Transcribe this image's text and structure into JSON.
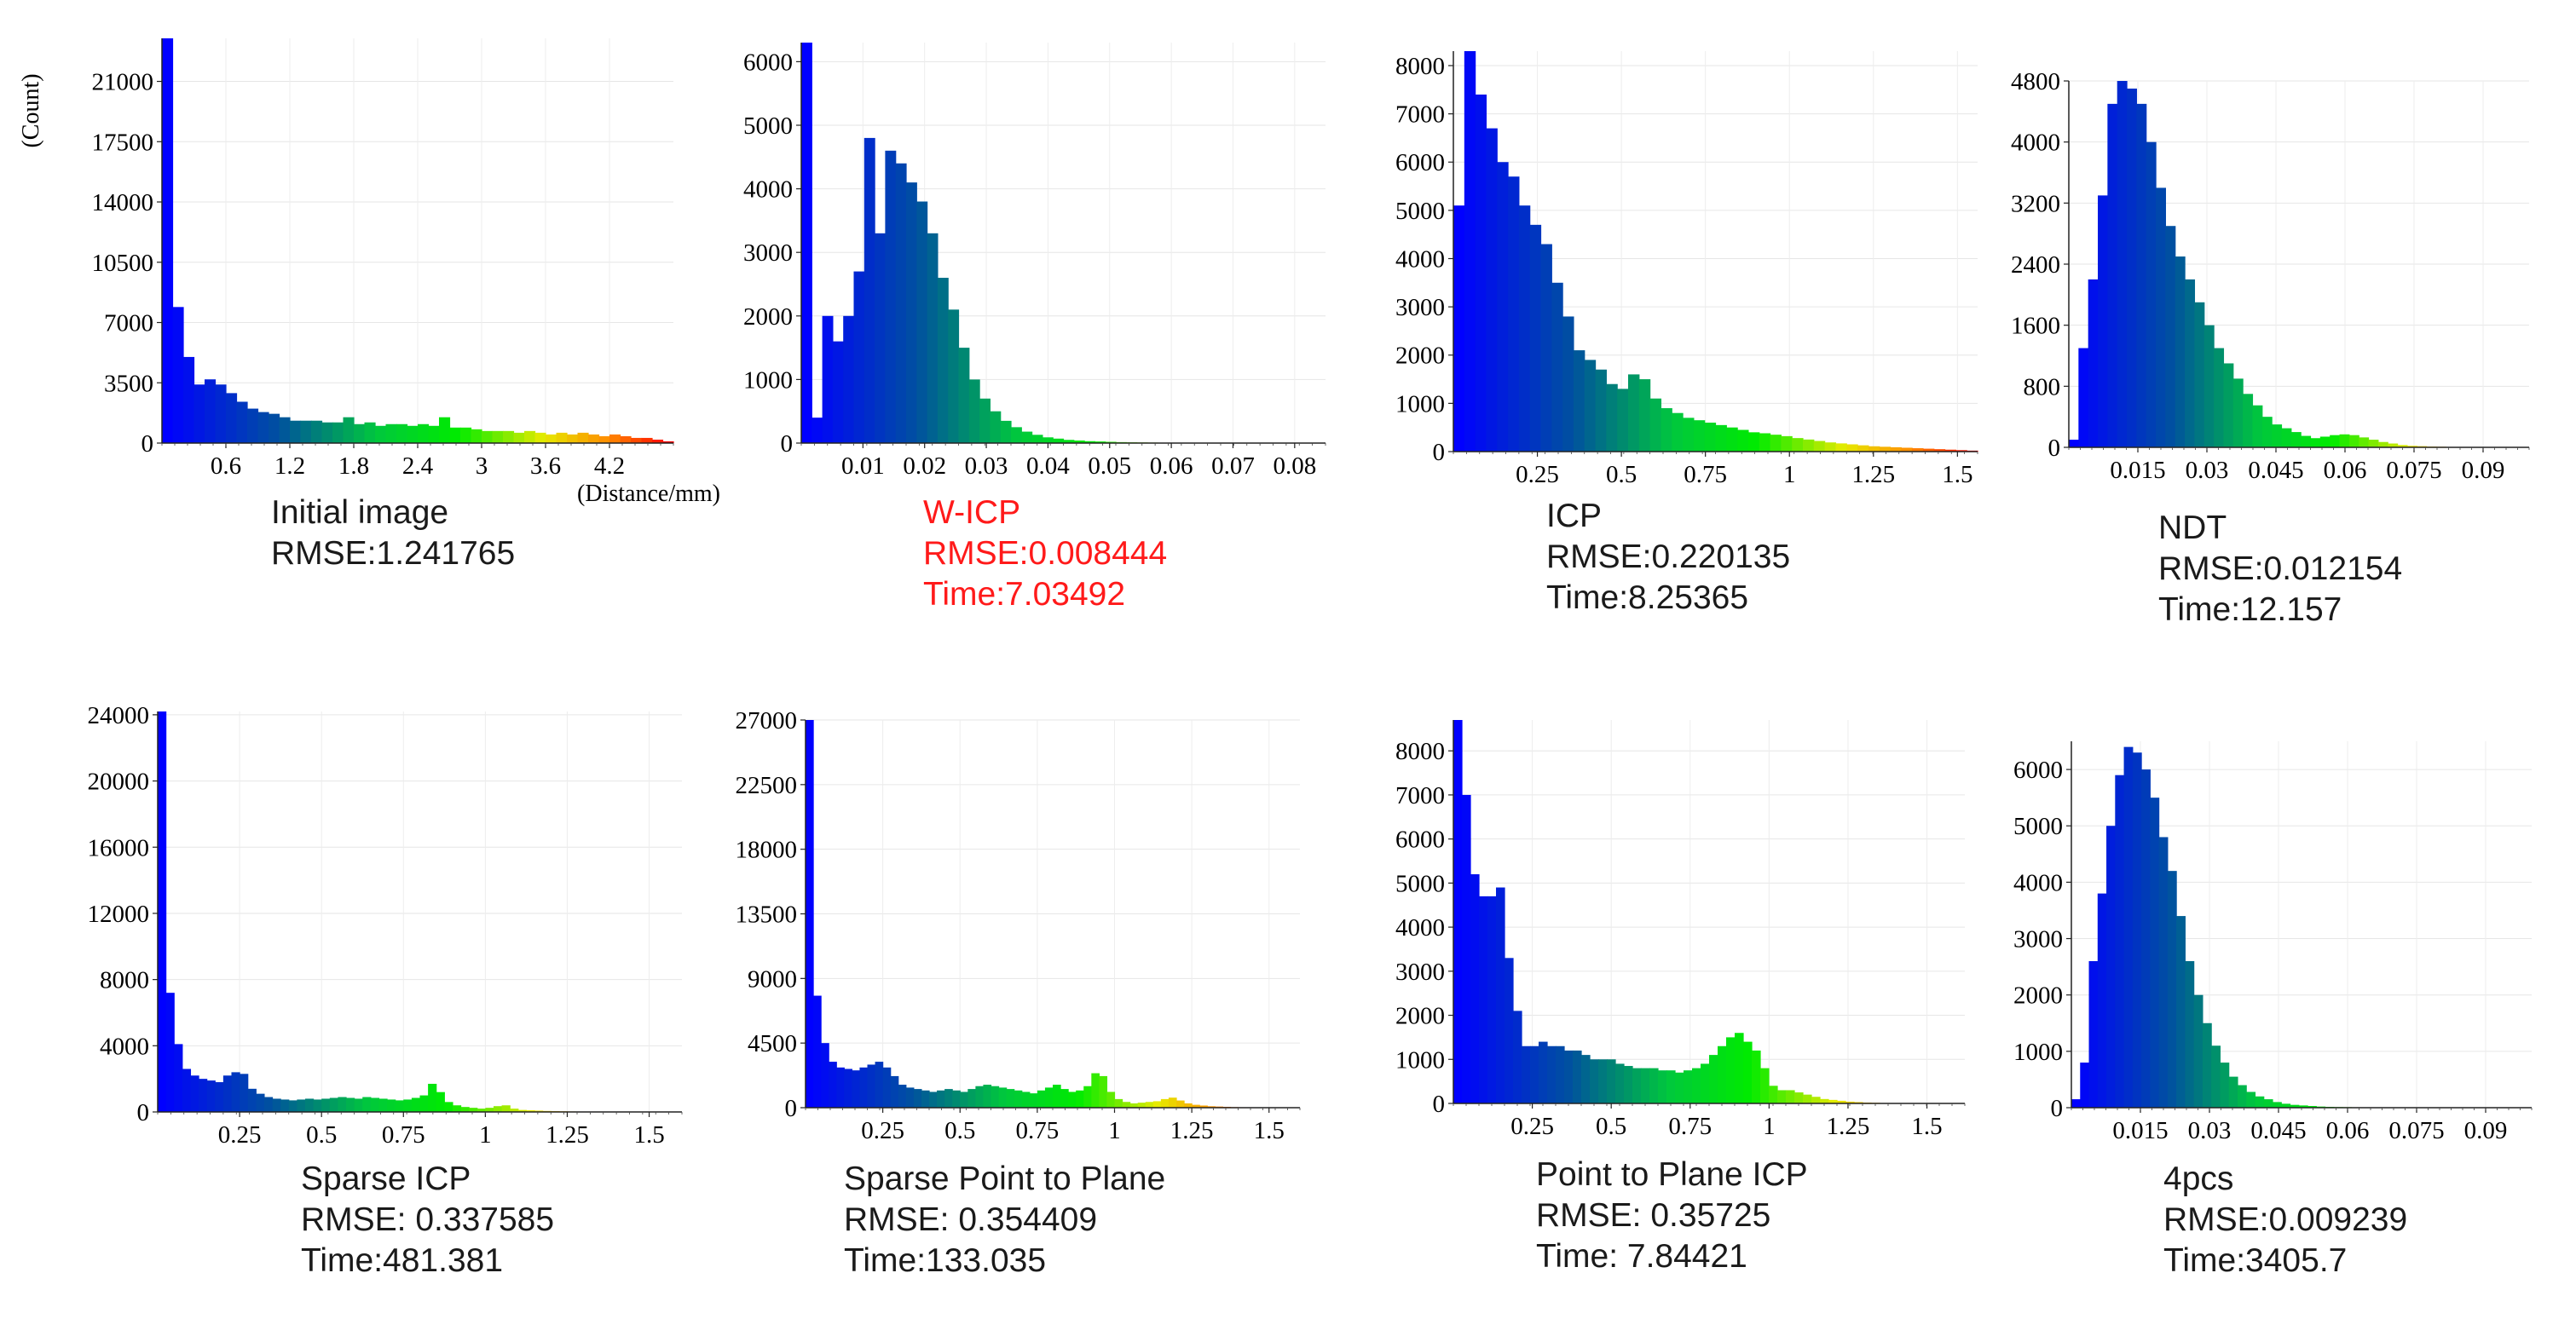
{
  "axis_titles": {
    "y": "(Count)",
    "x": "(Distance/mm)"
  },
  "chart_data": [
    {
      "type": "bar",
      "caption": [
        "Initial image",
        "RMSE:1.241765"
      ],
      "xlim": [
        0,
        4.8
      ],
      "ylim": [
        0,
        23500
      ],
      "xticks": [
        "0.6",
        "1.2",
        "1.8",
        "2.4",
        "3",
        "3.6",
        "4.2"
      ],
      "xtick_values": [
        0.6,
        1.2,
        1.8,
        2.4,
        3,
        3.6,
        4.2
      ],
      "yticks": [
        "0",
        "3500",
        "7000",
        "10500",
        "14000",
        "17500",
        "21000"
      ],
      "ytick_values": [
        0,
        3500,
        7000,
        10500,
        14000,
        17500,
        21000
      ],
      "bin_width": 0.1,
      "values": [
        23500,
        7900,
        5000,
        3400,
        3700,
        3400,
        2900,
        2400,
        2000,
        1800,
        1700,
        1500,
        1300,
        1300,
        1300,
        1200,
        1200,
        1500,
        1100,
        1200,
        1000,
        1100,
        1100,
        1000,
        1100,
        1000,
        1500,
        900,
        900,
        800,
        700,
        700,
        700,
        600,
        700,
        600,
        500,
        600,
        500,
        600,
        500,
        400,
        500,
        400,
        300,
        300,
        200,
        100
      ]
    },
    {
      "type": "bar",
      "caption": [
        "W-ICP",
        "RMSE:0.008444",
        "Time:7.03492"
      ],
      "highlight": true,
      "xlim": [
        0,
        0.085
      ],
      "ylim": [
        0,
        6300
      ],
      "xticks": [
        "0.01",
        "0.02",
        "0.03",
        "0.04",
        "0.05",
        "0.06",
        "0.07",
        "0.08"
      ],
      "xtick_values": [
        0.01,
        0.02,
        0.03,
        0.04,
        0.05,
        0.06,
        0.07,
        0.08
      ],
      "yticks": [
        "0",
        "1000",
        "2000",
        "3000",
        "4000",
        "5000",
        "6000"
      ],
      "ytick_values": [
        0,
        1000,
        2000,
        3000,
        4000,
        5000,
        6000
      ],
      "bin_width": 0.0017,
      "values": [
        6300,
        400,
        2000,
        1600,
        2000,
        2700,
        4800,
        3300,
        4600,
        4400,
        4100,
        3800,
        3300,
        2600,
        2100,
        1500,
        1000,
        700,
        500,
        350,
        250,
        180,
        130,
        90,
        70,
        50,
        40,
        30,
        25,
        20,
        15,
        12,
        10,
        8,
        6,
        5,
        4,
        3,
        3,
        2,
        2,
        2,
        1,
        1,
        1,
        1,
        1,
        1,
        1
      ]
    },
    {
      "type": "bar",
      "caption": [
        "ICP",
        "RMSE:0.220135",
        "Time:8.25365"
      ],
      "xlim": [
        0,
        1.56
      ],
      "ylim": [
        0,
        8300
      ],
      "xticks": [
        "0.25",
        "0.5",
        "0.75",
        "1",
        "1.25",
        "1.5"
      ],
      "xtick_values": [
        0.25,
        0.5,
        0.75,
        1,
        1.25,
        1.5
      ],
      "yticks": [
        "0",
        "1000",
        "2000",
        "3000",
        "4000",
        "5000",
        "6000",
        "7000",
        "8000"
      ],
      "ytick_values": [
        0,
        1000,
        2000,
        3000,
        4000,
        5000,
        6000,
        7000,
        8000
      ],
      "bin_width": 0.0325,
      "values": [
        5100,
        8300,
        7400,
        6700,
        6000,
        5700,
        5100,
        4700,
        4300,
        3500,
        2800,
        2100,
        1900,
        1700,
        1400,
        1300,
        1600,
        1500,
        1100,
        900,
        800,
        700,
        650,
        600,
        550,
        500,
        450,
        400,
        380,
        350,
        320,
        280,
        250,
        220,
        190,
        170,
        150,
        130,
        110,
        100,
        90,
        80,
        70,
        60,
        50,
        40,
        30,
        20
      ]
    },
    {
      "type": "bar",
      "caption": [
        "NDT",
        "RMSE:0.012154",
        "Time:12.157"
      ],
      "xlim": [
        0,
        0.1
      ],
      "ylim": [
        0,
        4800
      ],
      "xticks": [
        "0.015",
        "0.03",
        "0.045",
        "0.06",
        "0.075",
        "0.09"
      ],
      "xtick_values": [
        0.015,
        0.03,
        0.045,
        0.06,
        0.075,
        0.09
      ],
      "yticks": [
        "0",
        "800",
        "1600",
        "2400",
        "3200",
        "4000",
        "4800"
      ],
      "ytick_values": [
        0,
        800,
        1600,
        2400,
        3200,
        4000,
        4800
      ],
      "bin_width": 0.0021,
      "values": [
        100,
        1300,
        2200,
        3300,
        4500,
        4800,
        4700,
        4500,
        4000,
        3400,
        2900,
        2500,
        2200,
        1900,
        1600,
        1300,
        1100,
        900,
        700,
        550,
        400,
        300,
        250,
        200,
        150,
        120,
        140,
        160,
        170,
        160,
        130,
        100,
        70,
        50,
        30,
        20,
        15,
        10,
        8,
        5,
        3,
        2,
        1,
        1,
        1,
        1,
        1
      ]
    },
    {
      "type": "bar",
      "caption": [
        "Sparse ICP",
        "RMSE: 0.337585",
        "Time:481.381"
      ],
      "xlim": [
        0,
        1.6
      ],
      "ylim": [
        0,
        24200
      ],
      "xticks": [
        "0.25",
        "0.5",
        "0.75",
        "1",
        "1.25",
        "1.5"
      ],
      "xtick_values": [
        0.25,
        0.5,
        0.75,
        1,
        1.25,
        1.5
      ],
      "yticks": [
        "0",
        "4000",
        "8000",
        "12000",
        "16000",
        "20000",
        "24000"
      ],
      "ytick_values": [
        0,
        4000,
        8000,
        12000,
        16000,
        20000,
        24000
      ],
      "bin_width": 0.025,
      "values": [
        24200,
        7200,
        4100,
        2600,
        2200,
        2000,
        1900,
        1800,
        2200,
        2400,
        2300,
        1400,
        1100,
        900,
        800,
        750,
        700,
        750,
        800,
        750,
        800,
        850,
        900,
        850,
        800,
        900,
        850,
        800,
        750,
        700,
        750,
        850,
        1000,
        1700,
        1200,
        600,
        400,
        300,
        250,
        200,
        250,
        350,
        400,
        200,
        120,
        100,
        80,
        60,
        50,
        40,
        30,
        25,
        20,
        15,
        10,
        10,
        8,
        6,
        5,
        4,
        3
      ]
    },
    {
      "type": "bar",
      "caption": [
        "Sparse Point to Plane",
        "RMSE: 0.354409",
        "Time:133.035"
      ],
      "xlim": [
        0,
        1.6
      ],
      "ylim": [
        0,
        27000
      ],
      "xticks": [
        "0.25",
        "0.5",
        "0.75",
        "1",
        "1.25",
        "1.5"
      ],
      "xtick_values": [
        0.25,
        0.5,
        0.75,
        1,
        1.25,
        1.5
      ],
      "yticks": [
        "0",
        "4500",
        "9000",
        "13500",
        "18000",
        "22500",
        "27000"
      ],
      "ytick_values": [
        0,
        4500,
        9000,
        13500,
        18000,
        22500,
        27000
      ],
      "bin_width": 0.025,
      "values": [
        27000,
        7800,
        4500,
        3200,
        2800,
        2700,
        2600,
        2800,
        3000,
        3200,
        2800,
        2200,
        1600,
        1400,
        1300,
        1200,
        1100,
        1200,
        1300,
        1200,
        1100,
        1300,
        1500,
        1600,
        1500,
        1400,
        1300,
        1200,
        1100,
        1000,
        1200,
        1400,
        1600,
        1300,
        1100,
        1200,
        1500,
        2400,
        2200,
        1100,
        600,
        400,
        300,
        350,
        400,
        450,
        600,
        700,
        500,
        300,
        200,
        150,
        100,
        80,
        60,
        40,
        30,
        20,
        15,
        10,
        8
      ]
    },
    {
      "type": "bar",
      "caption": [
        "Point to Plane ICP",
        "RMSE: 0.35725",
        "Time: 7.84421"
      ],
      "xlim": [
        0,
        1.62
      ],
      "ylim": [
        0,
        8700
      ],
      "xticks": [
        "0.25",
        "0.5",
        "0.75",
        "1",
        "1.25",
        "1.5"
      ],
      "xtick_values": [
        0.25,
        0.5,
        0.75,
        1,
        1.25,
        1.5
      ],
      "yticks": [
        "0",
        "1000",
        "2000",
        "3000",
        "4000",
        "5000",
        "6000",
        "7000",
        "8000"
      ],
      "ytick_values": [
        0,
        1000,
        2000,
        3000,
        4000,
        5000,
        6000,
        7000,
        8000
      ],
      "bin_width": 0.027,
      "values": [
        8700,
        7000,
        5200,
        4700,
        4700,
        4900,
        3300,
        2100,
        1300,
        1300,
        1400,
        1300,
        1300,
        1200,
        1200,
        1100,
        1000,
        1000,
        1000,
        900,
        850,
        800,
        800,
        800,
        750,
        750,
        700,
        750,
        800,
        900,
        1100,
        1300,
        1500,
        1600,
        1400,
        1200,
        800,
        400,
        300,
        300,
        250,
        200,
        150,
        100,
        80,
        60,
        40,
        30,
        20,
        15,
        10,
        8,
        5,
        4,
        3,
        2,
        2,
        1,
        1,
        1
      ]
    },
    {
      "type": "bar",
      "caption": [
        "4pcs",
        "RMSE:0.009239",
        "Time:3405.7"
      ],
      "xlim": [
        0,
        0.1
      ],
      "ylim": [
        0,
        6500
      ],
      "xticks": [
        "0.015",
        "0.03",
        "0.045",
        "0.06",
        "0.075",
        "0.09"
      ],
      "xtick_values": [
        0.015,
        0.03,
        0.045,
        0.06,
        0.075,
        0.09
      ],
      "yticks": [
        "0",
        "1000",
        "2000",
        "3000",
        "4000",
        "5000",
        "6000"
      ],
      "ytick_values": [
        0,
        1000,
        2000,
        3000,
        4000,
        5000,
        6000
      ],
      "bin_width": 0.0019,
      "values": [
        150,
        800,
        2600,
        3800,
        5000,
        5900,
        6400,
        6300,
        6000,
        5500,
        4800,
        4200,
        3400,
        2600,
        2000,
        1500,
        1100,
        800,
        550,
        400,
        280,
        200,
        150,
        100,
        70,
        50,
        40,
        30,
        20,
        15,
        12,
        10,
        8,
        6,
        5,
        4,
        3,
        3,
        2,
        2,
        1,
        1,
        1,
        1,
        1,
        1,
        1,
        1,
        1,
        1
      ]
    }
  ]
}
